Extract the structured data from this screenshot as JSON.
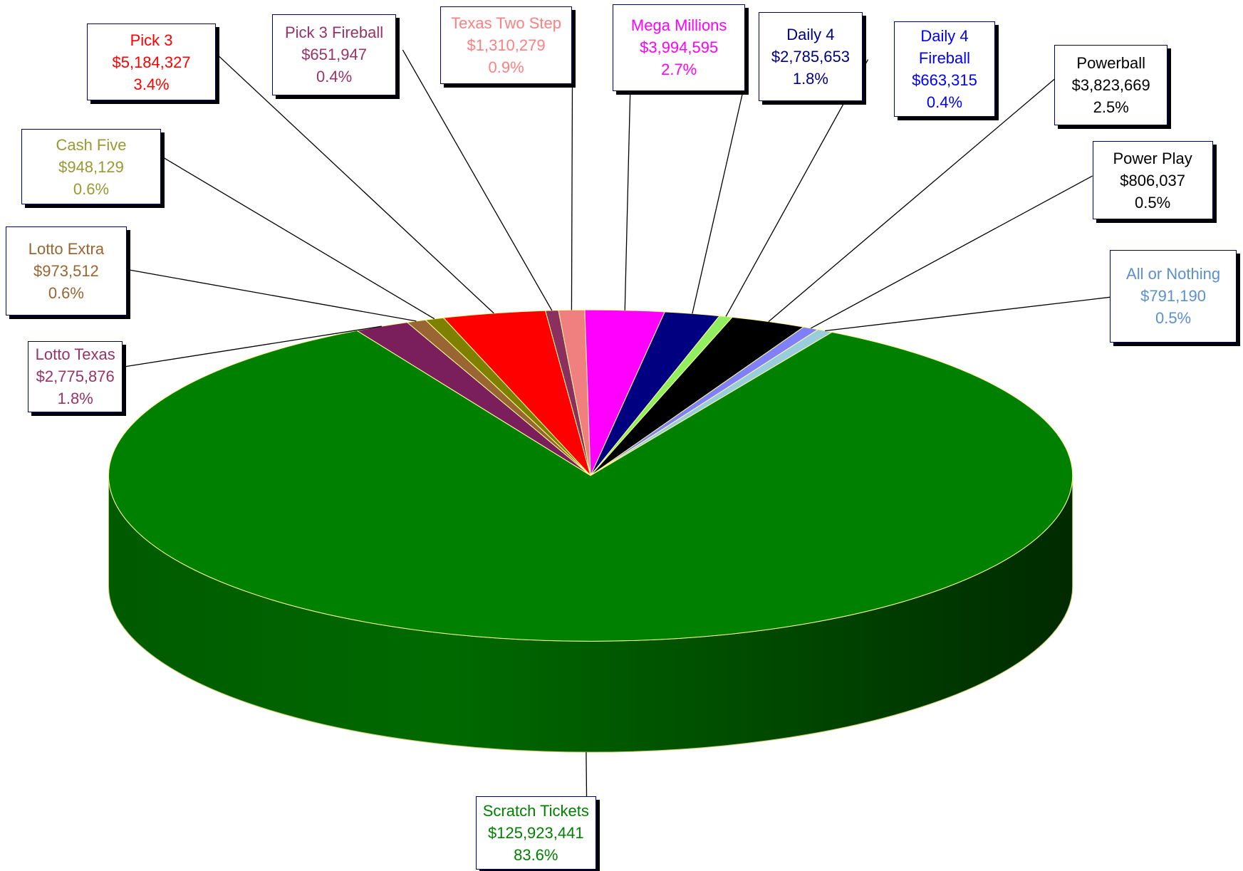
{
  "chart_data": {
    "type": "pie3d",
    "categories": [
      "Lotto Texas",
      "Lotto Extra",
      "Cash Five",
      "Pick 3",
      "Pick 3 Fireball",
      "Texas Two Step",
      "Mega Millions",
      "Daily 4",
      "Daily 4 Fireball",
      "Powerball",
      "Power Play",
      "All or Nothing",
      "Scratch Tickets"
    ],
    "values": [
      2775876,
      973512,
      948129,
      5184327,
      651947,
      1310279,
      3994595,
      2785653,
      663315,
      3823669,
      806037,
      791190,
      125923441
    ],
    "value_labels": [
      "$2,775,876",
      "$973,512",
      "$948,129",
      "$5,184,327",
      "$651,947",
      "$1,310,279",
      "$3,994,595",
      "$2,785,653",
      "$663,315",
      "$3,823,669",
      "$806,037",
      "$791,190",
      "$125,923,441"
    ],
    "percentages": [
      1.8,
      0.6,
      0.6,
      3.4,
      0.4,
      0.9,
      2.7,
      1.8,
      0.4,
      2.5,
      0.5,
      0.5,
      83.6
    ],
    "percentage_labels": [
      "1.8%",
      "0.6%",
      "0.6%",
      "3.4%",
      "0.4%",
      "0.9%",
      "2.7%",
      "1.8%",
      "0.4%",
      "2.5%",
      "0.5%",
      "0.5%",
      "83.6%"
    ],
    "colors": [
      "#7a1f5c",
      "#996633",
      "#808000",
      "#ff0000",
      "#8b2f5f",
      "#f08080",
      "#ff00ff",
      "#000080",
      "#90ee60",
      "#000000",
      "#8080ff",
      "#99ccdd",
      "#008000"
    ],
    "label_colors": [
      "#993366",
      "#996633",
      "#999933",
      "#ff0000",
      "#993366",
      "#ff8080",
      "#ff00ff",
      "#000080",
      "#0000ff",
      "#000000",
      "#000000",
      "#5b8fd0",
      "#008000"
    ]
  }
}
